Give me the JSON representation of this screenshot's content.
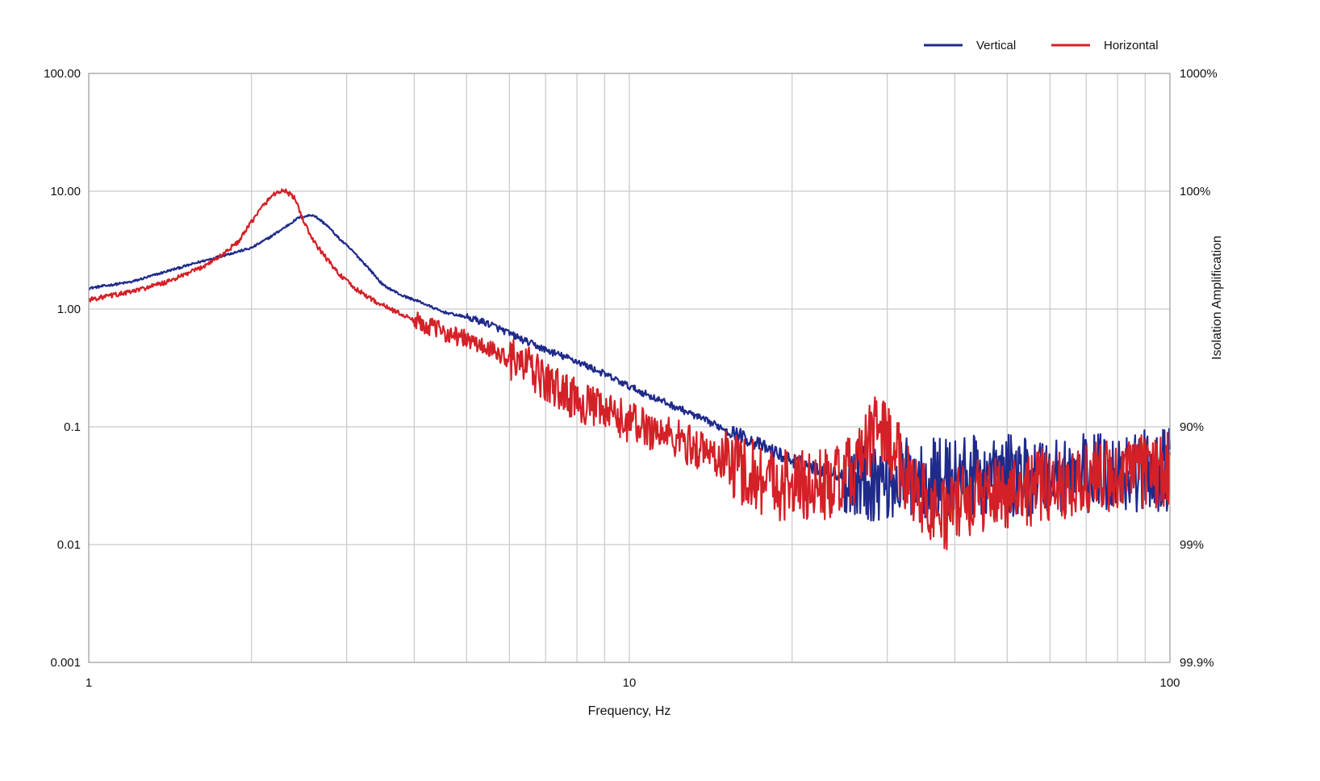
{
  "chart_data": {
    "type": "line",
    "xlabel": "Frequency, Hz",
    "ylabel_right": "Isolation Amplification",
    "x_scale": "log",
    "y_scale": "log",
    "xlim": [
      1,
      100
    ],
    "ylim": [
      0.001,
      100
    ],
    "grid": true,
    "legend_position": "top-right",
    "x_ticks": [
      "1",
      "10",
      "100"
    ],
    "y_ticks_left": [
      "100.00",
      "10.00",
      "1.00",
      "0.1",
      "0.01",
      "0.001"
    ],
    "y_ticks_right": [
      "1000%",
      "100%",
      "",
      "90%",
      "99%",
      "99.9%"
    ],
    "series": [
      {
        "name": "Vertical",
        "color": "#1f2a8a",
        "x": [
          1.0,
          1.2,
          1.4,
          1.6,
          1.8,
          2.0,
          2.15,
          2.3,
          2.45,
          2.6,
          2.75,
          2.9,
          3.1,
          3.3,
          3.5,
          3.8,
          4.1,
          4.5,
          5.0,
          5.5,
          6.0,
          6.5,
          7.0,
          7.5,
          8.0,
          9.0,
          10.0,
          11.0,
          12.5,
          14.0,
          16.0,
          18.0,
          20.0,
          22.0,
          25.0,
          28.0,
          32.0,
          37.0,
          42.0,
          48.0,
          55.0,
          62.0,
          70.0,
          80.0,
          90.0,
          100.0
        ],
        "values": [
          1.5,
          1.7,
          2.1,
          2.5,
          2.9,
          3.3,
          4.0,
          4.9,
          6.0,
          6.3,
          5.2,
          4.0,
          3.0,
          2.2,
          1.6,
          1.3,
          1.15,
          0.95,
          0.85,
          0.75,
          0.62,
          0.52,
          0.45,
          0.4,
          0.36,
          0.28,
          0.22,
          0.18,
          0.14,
          0.11,
          0.085,
          0.065,
          0.052,
          0.045,
          0.038,
          0.035,
          0.036,
          0.037,
          0.038,
          0.038,
          0.039,
          0.04,
          0.04,
          0.041,
          0.042,
          0.043
        ]
      },
      {
        "name": "Horizontal",
        "color": "#d42027",
        "x": [
          1.0,
          1.2,
          1.4,
          1.6,
          1.75,
          1.9,
          2.0,
          2.1,
          2.2,
          2.3,
          2.4,
          2.5,
          2.6,
          2.75,
          2.9,
          3.1,
          3.4,
          3.7,
          4.0,
          4.5,
          5.0,
          5.5,
          6.0,
          6.5,
          7.0,
          7.5,
          8.0,
          9.0,
          10.0,
          11.0,
          12.5,
          14.0,
          16.0,
          18.0,
          20.0,
          22.0,
          25.0,
          27.0,
          29.0,
          32.0,
          35.0,
          38.0,
          42.0,
          48.0,
          55.0,
          62.0,
          70.0,
          80.0,
          90.0,
          100.0
        ],
        "values": [
          1.2,
          1.4,
          1.7,
          2.2,
          2.8,
          3.8,
          5.5,
          7.5,
          9.5,
          10.2,
          8.8,
          5.5,
          3.8,
          2.7,
          2.0,
          1.5,
          1.15,
          0.95,
          0.8,
          0.65,
          0.55,
          0.45,
          0.38,
          0.32,
          0.24,
          0.2,
          0.17,
          0.13,
          0.11,
          0.095,
          0.075,
          0.06,
          0.045,
          0.035,
          0.032,
          0.031,
          0.035,
          0.055,
          0.11,
          0.045,
          0.025,
          0.018,
          0.024,
          0.028,
          0.03,
          0.033,
          0.036,
          0.039,
          0.041,
          0.043
        ]
      }
    ]
  }
}
